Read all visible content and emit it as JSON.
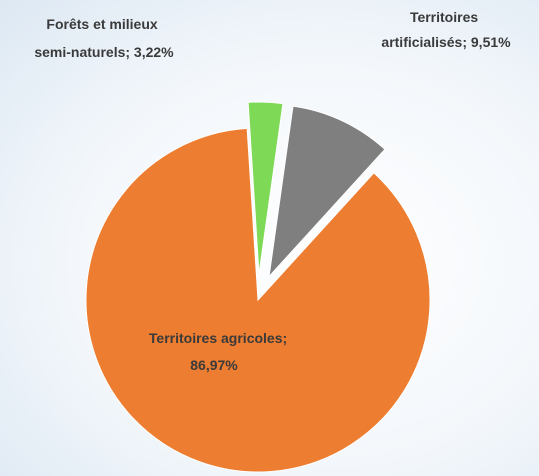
{
  "chart_data": {
    "type": "pie",
    "title": "",
    "series": [
      {
        "name": "",
        "values": [
          {
            "label": "Territoires artificialisés",
            "value": 9.51,
            "value_text": "9,51%",
            "color": "#7f7f7f",
            "label_lines": [
              "Territoires",
              "artificialisés; 9,51%"
            ],
            "exploded": true
          },
          {
            "label": "Territoires agricoles",
            "value": 86.97,
            "value_text": "86,97%",
            "color": "#ed7d31",
            "label_lines": [
              "Territoires agricoles;",
              "86,97%"
            ],
            "exploded": false
          },
          {
            "label": "Forêts et milieux semi-naturels",
            "value": 3.22,
            "value_text": "3,22%",
            "color": "#7ed957",
            "label_lines": [
              "Forêts et milieux",
              "semi-naturels; 3,22%"
            ],
            "exploded": true
          }
        ]
      }
    ],
    "start_angle_deg": 8,
    "direction": "clockwise",
    "legend": "none",
    "data_labels": "category; percent"
  }
}
